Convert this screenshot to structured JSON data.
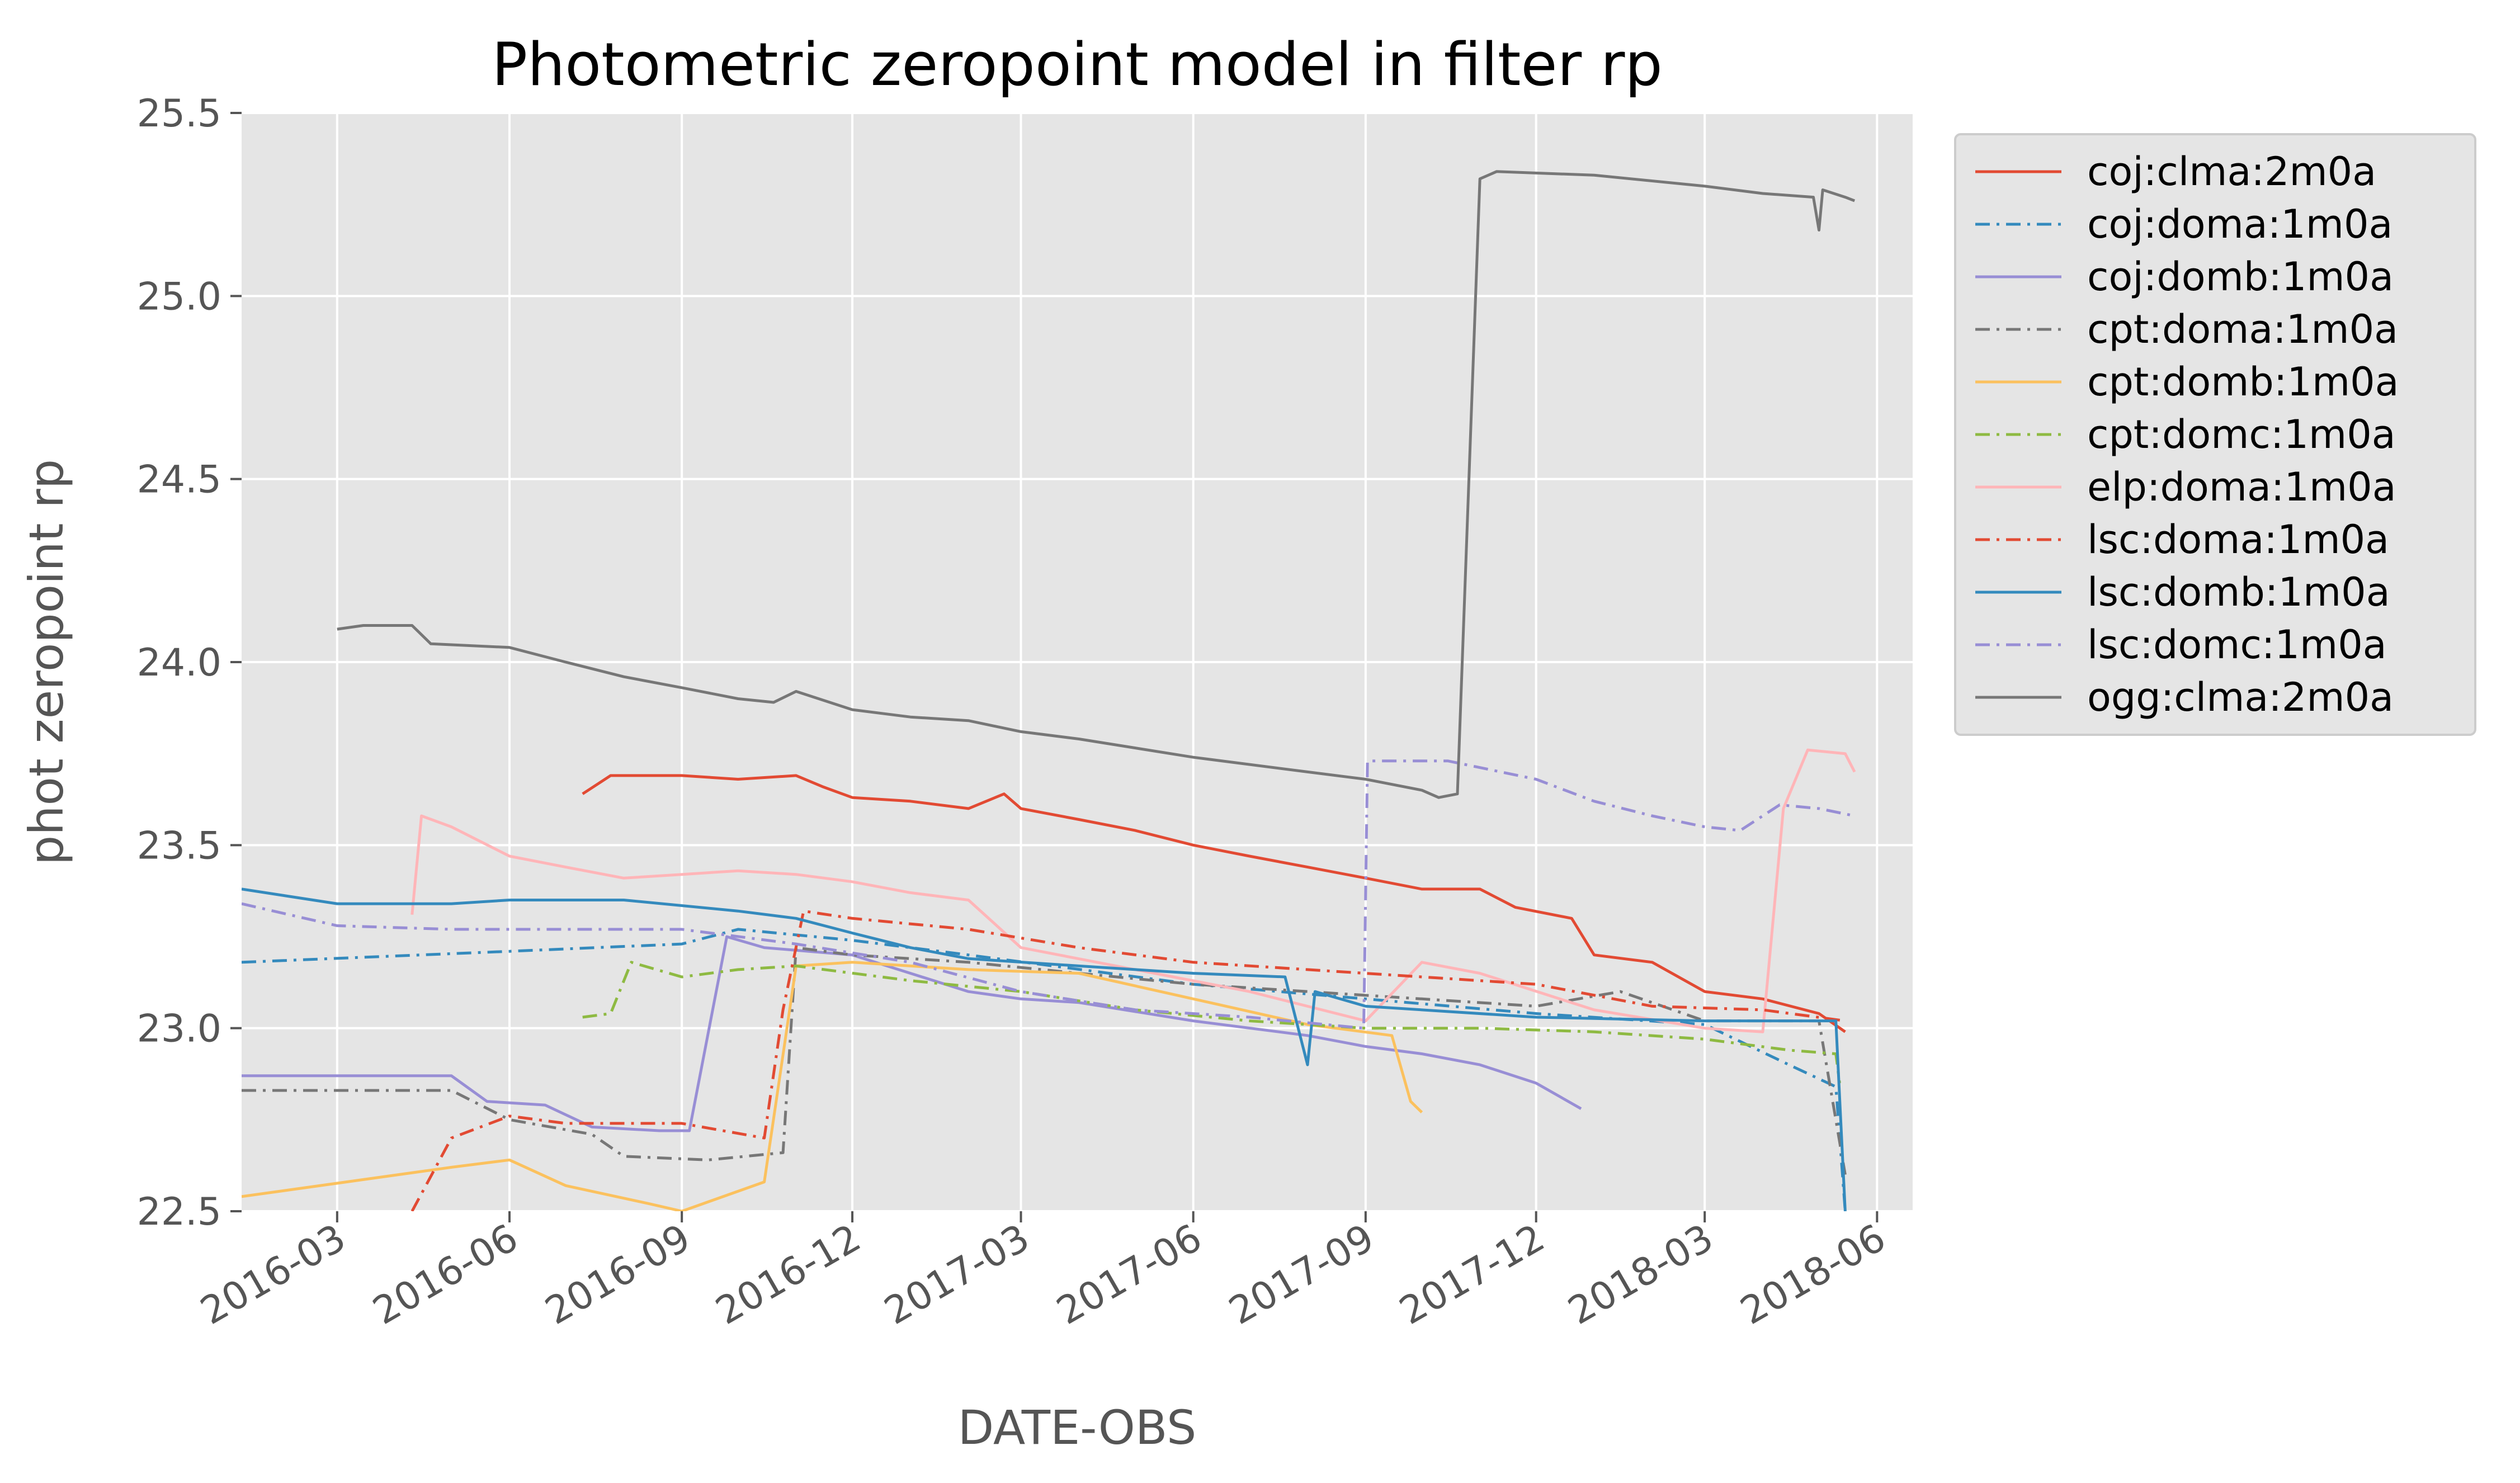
{
  "chart_data": {
    "type": "line",
    "title": "Photometric zeropoint model in filter rp",
    "xlabel": "DATE-OBS",
    "ylabel": "phot zeropoint rp",
    "xlim": [
      "2016-01-10",
      "2018-06-20"
    ],
    "ylim": [
      22.5,
      25.5
    ],
    "yticks": [
      22.5,
      23.0,
      23.5,
      24.0,
      24.5,
      25.0,
      25.5
    ],
    "ytick_labels": [
      "22.5",
      "23.0",
      "23.5",
      "24.0",
      "24.5",
      "25.0",
      "25.5"
    ],
    "xticks": [
      "2016-03-01",
      "2016-06-01",
      "2016-09-01",
      "2016-12-01",
      "2017-03-01",
      "2017-06-01",
      "2017-09-01",
      "2017-12-01",
      "2018-03-01",
      "2018-06-01"
    ],
    "xtick_labels": [
      "2016-03",
      "2016-06",
      "2016-09",
      "2016-12",
      "2017-03",
      "2017-06",
      "2017-09",
      "2017-12",
      "2018-03",
      "2018-06"
    ],
    "grid": true,
    "legend_position": "outside-right",
    "style": {
      "background": "#e5e5e5",
      "grid_color": "#ffffff",
      "tick_color": "#555555"
    },
    "series": [
      {
        "name": "coj:clma:2m0a",
        "color": "#e24a33",
        "dash": "solid",
        "points": [
          [
            "2016-07-10",
            23.64
          ],
          [
            "2016-07-25",
            23.69
          ],
          [
            "2016-09-01",
            23.69
          ],
          [
            "2016-10-01",
            23.68
          ],
          [
            "2016-11-01",
            23.69
          ],
          [
            "2016-11-15",
            23.66
          ],
          [
            "2016-12-01",
            23.63
          ],
          [
            "2017-01-01",
            23.62
          ],
          [
            "2017-02-01",
            23.6
          ],
          [
            "2017-02-20",
            23.64
          ],
          [
            "2017-03-01",
            23.6
          ],
          [
            "2017-04-01",
            23.57
          ],
          [
            "2017-05-01",
            23.54
          ],
          [
            "2017-06-01",
            23.5
          ],
          [
            "2017-07-01",
            23.47
          ],
          [
            "2017-08-01",
            23.44
          ],
          [
            "2017-09-01",
            23.41
          ],
          [
            "2017-10-01",
            23.38
          ],
          [
            "2017-11-01",
            23.38
          ],
          [
            "2017-11-20",
            23.33
          ],
          [
            "2017-12-20",
            23.3
          ],
          [
            "2018-01-01",
            23.2
          ],
          [
            "2018-02-01",
            23.18
          ],
          [
            "2018-03-01",
            23.1
          ],
          [
            "2018-04-01",
            23.08
          ],
          [
            "2018-05-01",
            23.04
          ],
          [
            "2018-05-15",
            22.99
          ]
        ]
      },
      {
        "name": "coj:doma:1m0a",
        "color": "#348abd",
        "dash": "dashdot",
        "points": [
          [
            "2016-01-10",
            23.18
          ],
          [
            "2016-06-01",
            23.21
          ],
          [
            "2016-09-01",
            23.23
          ],
          [
            "2016-10-01",
            23.27
          ],
          [
            "2016-12-01",
            23.24
          ],
          [
            "2017-02-01",
            23.2
          ],
          [
            "2017-06-01",
            23.12
          ],
          [
            "2017-09-01",
            23.08
          ],
          [
            "2017-12-01",
            23.04
          ],
          [
            "2018-03-01",
            23.01
          ],
          [
            "2018-04-15",
            22.9
          ],
          [
            "2018-05-10",
            22.84
          ],
          [
            "2018-05-15",
            22.5
          ]
        ]
      },
      {
        "name": "coj:domb:1m0a",
        "color": "#988ed5",
        "dash": "solid",
        "points": [
          [
            "2016-01-10",
            22.87
          ],
          [
            "2016-05-01",
            22.87
          ],
          [
            "2016-05-20",
            22.8
          ],
          [
            "2016-06-20",
            22.79
          ],
          [
            "2016-07-15",
            22.73
          ],
          [
            "2016-08-20",
            22.72
          ],
          [
            "2016-09-05",
            22.72
          ],
          [
            "2016-09-25",
            23.25
          ],
          [
            "2016-10-15",
            23.22
          ],
          [
            "2016-12-01",
            23.2
          ],
          [
            "2017-01-01",
            23.15
          ],
          [
            "2017-02-01",
            23.1
          ],
          [
            "2017-03-01",
            23.08
          ],
          [
            "2017-04-01",
            23.07
          ],
          [
            "2017-06-01",
            23.02
          ],
          [
            "2017-08-01",
            22.98
          ],
          [
            "2017-09-01",
            22.95
          ],
          [
            "2017-10-01",
            22.93
          ],
          [
            "2017-11-01",
            22.9
          ],
          [
            "2017-12-01",
            22.85
          ],
          [
            "2017-12-25",
            22.78
          ]
        ]
      },
      {
        "name": "cpt:doma:1m0a",
        "color": "#777777",
        "dash": "dashdot",
        "points": [
          [
            "2016-01-10",
            22.83
          ],
          [
            "2016-05-01",
            22.83
          ],
          [
            "2016-06-01",
            22.75
          ],
          [
            "2016-07-15",
            22.71
          ],
          [
            "2016-08-01",
            22.65
          ],
          [
            "2016-09-15",
            22.64
          ],
          [
            "2016-10-25",
            22.66
          ],
          [
            "2016-11-01",
            23.22
          ],
          [
            "2016-12-01",
            23.2
          ],
          [
            "2017-02-01",
            23.18
          ],
          [
            "2017-04-01",
            23.15
          ],
          [
            "2017-06-01",
            23.12
          ],
          [
            "2017-08-01",
            23.1
          ],
          [
            "2017-10-01",
            23.08
          ],
          [
            "2017-12-01",
            23.06
          ],
          [
            "2018-01-15",
            23.1
          ],
          [
            "2018-03-01",
            23.02
          ],
          [
            "2018-05-01",
            23.02
          ],
          [
            "2018-05-15",
            22.6
          ]
        ]
      },
      {
        "name": "cpt:domb:1m0a",
        "color": "#fbc15e",
        "dash": "solid",
        "points": [
          [
            "2016-01-10",
            22.54
          ],
          [
            "2016-05-01",
            22.62
          ],
          [
            "2016-06-01",
            22.64
          ],
          [
            "2016-07-01",
            22.57
          ],
          [
            "2016-08-15",
            22.52
          ],
          [
            "2016-09-01",
            22.5
          ],
          [
            "2016-10-15",
            22.58
          ],
          [
            "2016-11-01",
            23.17
          ],
          [
            "2016-12-01",
            23.18
          ],
          [
            "2017-02-01",
            23.16
          ],
          [
            "2017-04-01",
            23.15
          ],
          [
            "2017-06-01",
            23.08
          ],
          [
            "2017-08-01",
            23.01
          ],
          [
            "2017-09-15",
            22.98
          ],
          [
            "2017-09-25",
            22.8
          ],
          [
            "2017-10-01",
            22.77
          ]
        ]
      },
      {
        "name": "cpt:domc:1m0a",
        "color": "#8eba42",
        "dash": "dashdot",
        "points": [
          [
            "2016-07-10",
            23.03
          ],
          [
            "2016-07-25",
            23.04
          ],
          [
            "2016-08-05",
            23.18
          ],
          [
            "2016-09-01",
            23.14
          ],
          [
            "2016-10-01",
            23.16
          ],
          [
            "2016-11-01",
            23.17
          ],
          [
            "2017-01-01",
            23.13
          ],
          [
            "2017-03-01",
            23.1
          ],
          [
            "2017-05-01",
            23.05
          ],
          [
            "2017-07-01",
            23.02
          ],
          [
            "2017-09-01",
            23.0
          ],
          [
            "2017-11-01",
            23.0
          ],
          [
            "2018-01-01",
            22.99
          ],
          [
            "2018-03-01",
            22.97
          ],
          [
            "2018-04-15",
            22.94
          ],
          [
            "2018-05-10",
            22.93
          ],
          [
            "2018-05-12",
            22.85
          ]
        ]
      },
      {
        "name": "elp:doma:1m0a",
        "color": "#ffb5b8",
        "dash": "solid",
        "points": [
          [
            "2016-04-10",
            23.31
          ],
          [
            "2016-04-15",
            23.58
          ],
          [
            "2016-05-01",
            23.55
          ],
          [
            "2016-06-01",
            23.47
          ],
          [
            "2016-07-01",
            23.44
          ],
          [
            "2016-08-01",
            23.41
          ],
          [
            "2016-09-01",
            23.42
          ],
          [
            "2016-10-01",
            23.43
          ],
          [
            "2016-11-01",
            23.42
          ],
          [
            "2016-12-01",
            23.4
          ],
          [
            "2017-01-01",
            23.37
          ],
          [
            "2017-02-01",
            23.35
          ],
          [
            "2017-03-01",
            23.22
          ],
          [
            "2017-05-01",
            23.16
          ],
          [
            "2017-07-01",
            23.1
          ],
          [
            "2017-09-01",
            23.02
          ],
          [
            "2017-10-01",
            23.18
          ],
          [
            "2017-11-01",
            23.15
          ],
          [
            "2018-01-01",
            23.05
          ],
          [
            "2018-03-01",
            23.0
          ],
          [
            "2018-04-01",
            22.99
          ],
          [
            "2018-04-12",
            23.6
          ],
          [
            "2018-04-25",
            23.76
          ],
          [
            "2018-05-15",
            23.75
          ],
          [
            "2018-05-20",
            23.7
          ]
        ]
      },
      {
        "name": "lsc:doma:1m0a",
        "color": "#e24a33",
        "dash": "dashdot",
        "points": [
          [
            "2016-04-10",
            22.5
          ],
          [
            "2016-05-01",
            22.7
          ],
          [
            "2016-06-01",
            22.76
          ],
          [
            "2016-07-01",
            22.74
          ],
          [
            "2016-09-01",
            22.74
          ],
          [
            "2016-10-15",
            22.7
          ],
          [
            "2016-10-25",
            23.05
          ],
          [
            "2016-11-05",
            23.32
          ],
          [
            "2016-12-01",
            23.3
          ],
          [
            "2017-02-01",
            23.27
          ],
          [
            "2017-04-01",
            23.22
          ],
          [
            "2017-06-01",
            23.18
          ],
          [
            "2017-08-01",
            23.16
          ],
          [
            "2017-10-01",
            23.14
          ],
          [
            "2017-12-01",
            23.12
          ],
          [
            "2018-02-01",
            23.06
          ],
          [
            "2018-04-01",
            23.05
          ],
          [
            "2018-05-15",
            23.02
          ]
        ]
      },
      {
        "name": "lsc:domb:1m0a",
        "color": "#348abd",
        "dash": "solid",
        "points": [
          [
            "2016-01-10",
            23.38
          ],
          [
            "2016-03-01",
            23.34
          ],
          [
            "2016-05-01",
            23.34
          ],
          [
            "2016-06-01",
            23.35
          ],
          [
            "2016-08-01",
            23.35
          ],
          [
            "2016-10-01",
            23.32
          ],
          [
            "2016-11-01",
            23.3
          ],
          [
            "2016-12-01",
            23.26
          ],
          [
            "2017-01-01",
            23.22
          ],
          [
            "2017-02-01",
            23.19
          ],
          [
            "2017-04-01",
            23.17
          ],
          [
            "2017-06-01",
            23.15
          ],
          [
            "2017-07-20",
            23.14
          ],
          [
            "2017-08-01",
            22.9
          ],
          [
            "2017-08-05",
            23.1
          ],
          [
            "2017-09-01",
            23.06
          ],
          [
            "2017-12-01",
            23.03
          ],
          [
            "2018-03-01",
            23.02
          ],
          [
            "2018-05-10",
            23.02
          ],
          [
            "2018-05-15",
            22.5
          ]
        ]
      },
      {
        "name": "lsc:domc:1m0a",
        "color": "#988ed5",
        "dash": "dashdot",
        "points": [
          [
            "2016-01-10",
            23.34
          ],
          [
            "2016-03-01",
            23.28
          ],
          [
            "2016-05-01",
            23.27
          ],
          [
            "2016-07-01",
            23.27
          ],
          [
            "2016-09-01",
            23.27
          ],
          [
            "2016-11-01",
            23.23
          ],
          [
            "2017-01-01",
            23.18
          ],
          [
            "2017-03-01",
            23.1
          ],
          [
            "2017-05-01",
            23.05
          ],
          [
            "2017-07-01",
            23.03
          ],
          [
            "2017-08-31",
            23.0
          ],
          [
            "2017-09-02",
            23.73
          ],
          [
            "2017-10-15",
            23.73
          ],
          [
            "2017-12-01",
            23.68
          ],
          [
            "2018-01-01",
            23.62
          ],
          [
            "2018-02-01",
            23.58
          ],
          [
            "2018-03-01",
            23.55
          ],
          [
            "2018-03-20",
            23.54
          ],
          [
            "2018-04-10",
            23.61
          ],
          [
            "2018-05-01",
            23.6
          ],
          [
            "2018-05-20",
            23.58
          ]
        ]
      },
      {
        "name": "ogg:clma:2m0a",
        "color": "#777777",
        "dash": "solid",
        "points": [
          [
            "2016-03-01",
            24.09
          ],
          [
            "2016-03-15",
            24.1
          ],
          [
            "2016-04-10",
            24.1
          ],
          [
            "2016-04-20",
            24.05
          ],
          [
            "2016-06-01",
            24.04
          ],
          [
            "2016-07-01",
            24.0
          ],
          [
            "2016-08-01",
            23.96
          ],
          [
            "2016-09-01",
            23.93
          ],
          [
            "2016-10-01",
            23.9
          ],
          [
            "2016-10-20",
            23.89
          ],
          [
            "2016-11-01",
            23.92
          ],
          [
            "2016-12-01",
            23.87
          ],
          [
            "2017-01-01",
            23.85
          ],
          [
            "2017-02-01",
            23.84
          ],
          [
            "2017-03-01",
            23.81
          ],
          [
            "2017-04-01",
            23.79
          ],
          [
            "2017-06-01",
            23.74
          ],
          [
            "2017-08-01",
            23.7
          ],
          [
            "2017-09-01",
            23.68
          ],
          [
            "2017-10-01",
            23.65
          ],
          [
            "2017-10-10",
            23.63
          ],
          [
            "2017-10-20",
            23.64
          ],
          [
            "2017-11-01",
            25.32
          ],
          [
            "2017-11-10",
            25.34
          ],
          [
            "2018-01-01",
            25.33
          ],
          [
            "2018-03-01",
            25.3
          ],
          [
            "2018-04-01",
            25.28
          ],
          [
            "2018-04-28",
            25.27
          ],
          [
            "2018-05-01",
            25.18
          ],
          [
            "2018-05-03",
            25.29
          ],
          [
            "2018-05-15",
            25.27
          ],
          [
            "2018-05-20",
            25.26
          ]
        ]
      }
    ]
  }
}
